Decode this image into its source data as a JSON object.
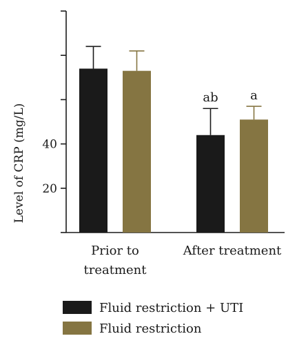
{
  "chart_data": {
    "type": "bar",
    "title": "",
    "ylabel": "Level of CRP (mg/L)",
    "xlabel": "",
    "ylim": [
      0,
      100
    ],
    "yticks": [
      0,
      20,
      40,
      60,
      80,
      100
    ],
    "ytick_labels": [
      "",
      "20",
      "40",
      "",
      "",
      ""
    ],
    "categories": [
      "Prior to treatment",
      "After treatment"
    ],
    "category_lines": [
      [
        "Prior to",
        "treatment"
      ],
      [
        "After treatment"
      ]
    ],
    "series": [
      {
        "name": "Fluid restriction + UTI",
        "color": "#1a1a1a",
        "values": [
          74,
          44
        ],
        "errors": [
          10,
          12
        ],
        "error_color": "#1a1a1a"
      },
      {
        "name": "Fluid restriction",
        "color": "#857542",
        "values": [
          73,
          51
        ],
        "errors": [
          9,
          6
        ],
        "error_color": "#857542"
      }
    ],
    "annotations": [
      {
        "category": 1,
        "series": 0,
        "text": "ab"
      },
      {
        "category": 1,
        "series": 1,
        "text": "a"
      }
    ],
    "legend": "bottom-left",
    "grid": false
  }
}
